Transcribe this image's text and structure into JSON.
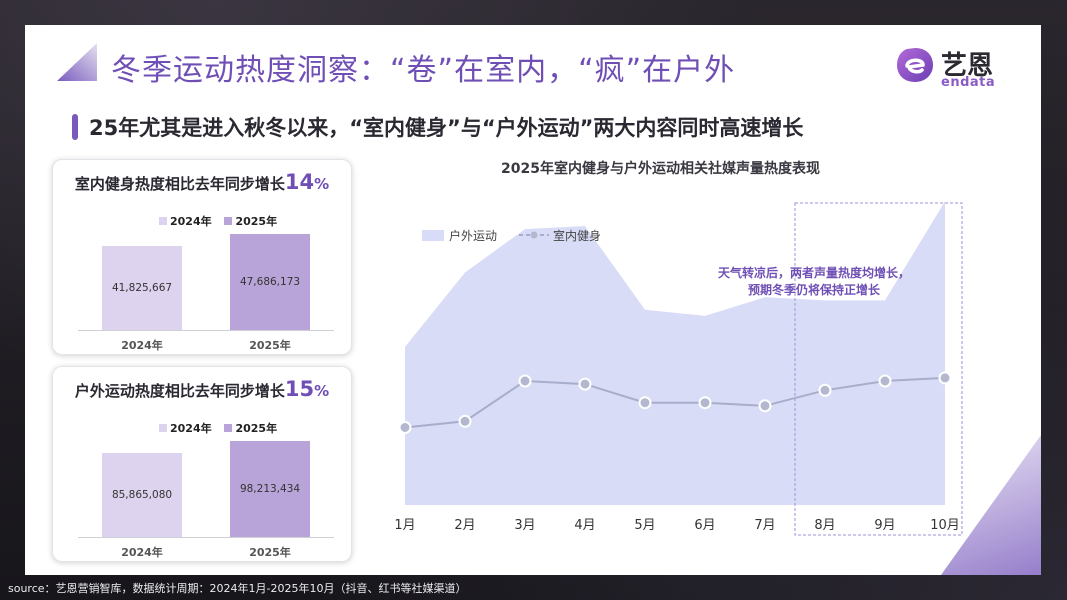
{
  "title": "冬季运动热度洞察：“卷”在室内，“疯”在户外",
  "logo": {
    "cn": "艺恩",
    "en": "endata"
  },
  "subtitle": "25年尤其是进入秋冬以来，“室内健身”与“户外运动”两大内容同时高速增长",
  "cards": [
    {
      "title_prefix": "室内健身热度相比去年同步增长",
      "pct_value": "14",
      "pct_sign": "%",
      "legend": [
        "2024年",
        "2025年"
      ],
      "bars": [
        {
          "year": "2024年",
          "value": 41825667,
          "label": "41,825,667"
        },
        {
          "year": "2025年",
          "value": 47686173,
          "label": "47,686,173"
        }
      ]
    },
    {
      "title_prefix": "户外运动热度相比去年同步增长",
      "pct_value": "15",
      "pct_sign": "%",
      "legend": [
        "2024年",
        "2025年"
      ],
      "bars": [
        {
          "year": "2024年",
          "value": 85865080,
          "label": "85,865,080"
        },
        {
          "year": "2025年",
          "value": 98213434,
          "label": "98,213,434"
        }
      ]
    }
  ],
  "chart_data": {
    "type": "area",
    "title": "2025年室内健身与户外运动相关社媒声量热度表现",
    "categories": [
      "1月",
      "2月",
      "3月",
      "4月",
      "5月",
      "6月",
      "7月",
      "8月",
      "9月",
      "10月"
    ],
    "series": [
      {
        "name": "户外运动",
        "type": "area",
        "values": [
          51,
          75,
          89,
          90,
          63,
          61,
          67,
          66,
          66,
          98
        ]
      },
      {
        "name": "室内健身",
        "type": "line",
        "values": [
          25,
          27,
          40,
          39,
          33,
          33,
          32,
          37,
          40,
          41
        ]
      }
    ],
    "ylim": [
      0,
      100
    ],
    "grid": false,
    "legend_position": "top-left",
    "annotation": [
      "天气转凉后，两者声量热度均增长，",
      "预期冬季仍将保持正增长"
    ],
    "highlight_range": [
      "8月",
      "10月"
    ],
    "colors": {
      "area": "#d9dcf6",
      "line": "#a7aecb",
      "marker": "#b3b8cf",
      "highlight": "#9e92d8",
      "annotation": "#6f4fb5"
    }
  },
  "colors": {
    "brand": "#6f4fb5",
    "bar_2024": "#ddd3ee",
    "bar_2025": "#b8a4d8"
  },
  "source": "source：艺恩营销智库，数据统计周期：2024年1月-2025年10月（抖音、红书等社媒渠道）"
}
